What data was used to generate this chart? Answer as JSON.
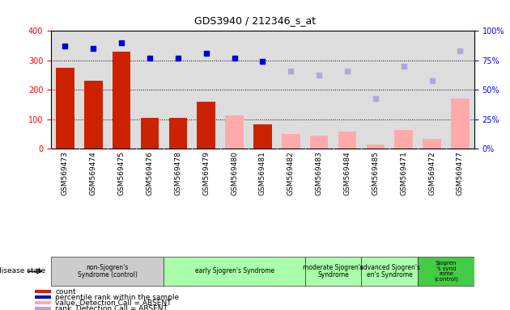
{
  "title": "GDS3940 / 212346_s_at",
  "samples": [
    "GSM569473",
    "GSM569474",
    "GSM569475",
    "GSM569476",
    "GSM569478",
    "GSM569479",
    "GSM569480",
    "GSM569481",
    "GSM569482",
    "GSM569483",
    "GSM569484",
    "GSM569485",
    "GSM569471",
    "GSM569472",
    "GSM569477"
  ],
  "count_values": [
    275,
    230,
    330,
    105,
    105,
    160,
    null,
    82,
    null,
    null,
    null,
    null,
    null,
    null,
    null
  ],
  "count_absent": [
    null,
    null,
    null,
    null,
    null,
    null,
    113,
    null,
    50,
    45,
    58,
    15,
    65,
    33,
    170
  ],
  "rank_present_pct": [
    87.5,
    85.0,
    90.0,
    77.0,
    77.0,
    80.75,
    77.0,
    74.5,
    null,
    null,
    null,
    null,
    null,
    null,
    null
  ],
  "rank_absent_pct": [
    null,
    null,
    null,
    null,
    null,
    null,
    null,
    null,
    66.25,
    62.5,
    66.25,
    42.5,
    70.0,
    58.0,
    83.0
  ],
  "ylim_left": [
    0,
    400
  ],
  "ylim_right": [
    0,
    100
  ],
  "yticks_left": [
    0,
    100,
    200,
    300,
    400
  ],
  "yticks_right": [
    0,
    25,
    50,
    75,
    100
  ],
  "bar_color_present": "#cc2200",
  "bar_color_absent": "#ffaaaa",
  "dot_color_present": "#0000cc",
  "dot_color_absent": "#aaaadd",
  "bg_color": "#dddddd",
  "group_info": [
    {
      "label": "non-Sjogren's\nSyndrome (control)",
      "start": 0,
      "end": 3,
      "color": "#cccccc"
    },
    {
      "label": "early Sjogren's Syndrome",
      "start": 4,
      "end": 8,
      "color": "#aaffaa"
    },
    {
      "label": "moderate Sjogren's\nSyndrome",
      "start": 9,
      "end": 10,
      "color": "#aaffaa"
    },
    {
      "label": "advanced Sjogren's\nen's Syndrome",
      "start": 11,
      "end": 12,
      "color": "#aaffaa"
    },
    {
      "label": "Sjogren\n's synd\nrome\n(control)",
      "start": 13,
      "end": 14,
      "color": "#44cc44"
    }
  ]
}
